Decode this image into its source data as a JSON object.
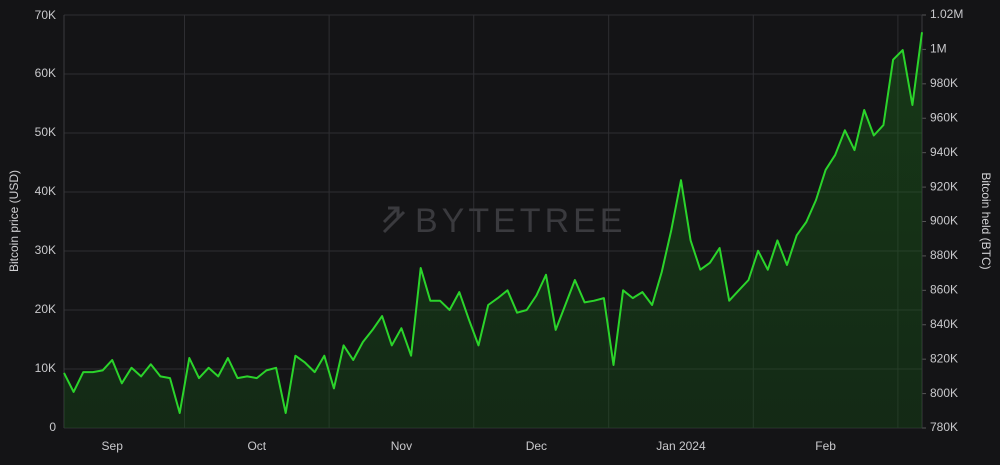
{
  "chart_data": {
    "type": "area",
    "watermark": "BYTETREE",
    "y_label": "Bitcoin price (USD)",
    "y2_label": "Bitcoin held (BTC)",
    "categories": [
      null,
      null,
      null,
      null,
      null,
      "Sep",
      null,
      null,
      null,
      null,
      null,
      null,
      null,
      null,
      null,
      null,
      null,
      null,
      null,
      null,
      "Oct",
      null,
      null,
      null,
      null,
      null,
      null,
      null,
      null,
      null,
      null,
      null,
      null,
      null,
      null,
      "Nov",
      null,
      null,
      null,
      null,
      null,
      null,
      null,
      null,
      null,
      null,
      null,
      null,
      null,
      "Dec",
      null,
      null,
      null,
      null,
      null,
      null,
      null,
      null,
      null,
      null,
      null,
      null,
      null,
      null,
      "Jan 2024",
      null,
      null,
      null,
      null,
      null,
      null,
      null,
      null,
      null,
      null,
      null,
      null,
      null,
      null,
      "Feb",
      null,
      null,
      null,
      null,
      null,
      null,
      null,
      null,
      null,
      null
    ],
    "series": [
      {
        "name": "Bitcoin held (BTC)",
        "axis": "y2",
        "color": "#2bd42b",
        "values": [
          812000,
          801000,
          812500,
          812500,
          813500,
          819500,
          806000,
          815000,
          810000,
          817000,
          810000,
          809000,
          788700,
          820700,
          809000,
          815000,
          810000,
          820700,
          809000,
          810000,
          809000,
          813500,
          815000,
          788700,
          822000,
          818000,
          812500,
          822000,
          803000,
          828000,
          819500,
          830000,
          837000,
          845000,
          828000,
          838000,
          822000,
          873000,
          854000,
          854000,
          848600,
          859000,
          843000,
          828000,
          851500,
          855500,
          860000,
          847000,
          848600,
          857000,
          869000,
          837000,
          851500,
          866000,
          853000,
          854000,
          855500,
          816600,
          860000,
          855500,
          859000,
          851500,
          870600,
          895000,
          924000,
          889000,
          872000,
          876000,
          884600,
          854000,
          860000,
          866000,
          883000,
          872000,
          889000,
          874700,
          892000,
          899700,
          912500,
          930000,
          938700,
          953000,
          941500,
          964800,
          950000,
          956000,
          994000,
          999600,
          967700,
          1010000
        ]
      }
    ],
    "ylim": [
      0,
      70000
    ],
    "yticks": [
      0,
      {
        "value": 10000,
        "label": "10K"
      },
      {
        "value": 20000,
        "label": "20K"
      },
      {
        "value": 30000,
        "label": "30K"
      },
      {
        "value": 40000,
        "label": "40K"
      },
      {
        "value": 50000,
        "label": "50K"
      },
      {
        "value": 60000,
        "label": "60K"
      },
      {
        "value": 70000,
        "label": "70K"
      }
    ],
    "y2lim": [
      780000,
      1020000
    ],
    "y2ticks": [
      {
        "value": 780000,
        "label": "780K"
      },
      {
        "value": 800000,
        "label": "800K"
      },
      {
        "value": 820000,
        "label": "820K"
      },
      {
        "value": 840000,
        "label": "840K"
      },
      {
        "value": 860000,
        "label": "860K"
      },
      {
        "value": 880000,
        "label": "880K"
      },
      {
        "value": 900000,
        "label": "900K"
      },
      {
        "value": 920000,
        "label": "920K"
      },
      {
        "value": 940000,
        "label": "940K"
      },
      {
        "value": 960000,
        "label": "960K"
      },
      {
        "value": 980000,
        "label": "980K"
      },
      {
        "value": 1000000,
        "label": "1M"
      },
      {
        "value": 1020000,
        "label": "1.02M"
      }
    ],
    "grid": true
  }
}
